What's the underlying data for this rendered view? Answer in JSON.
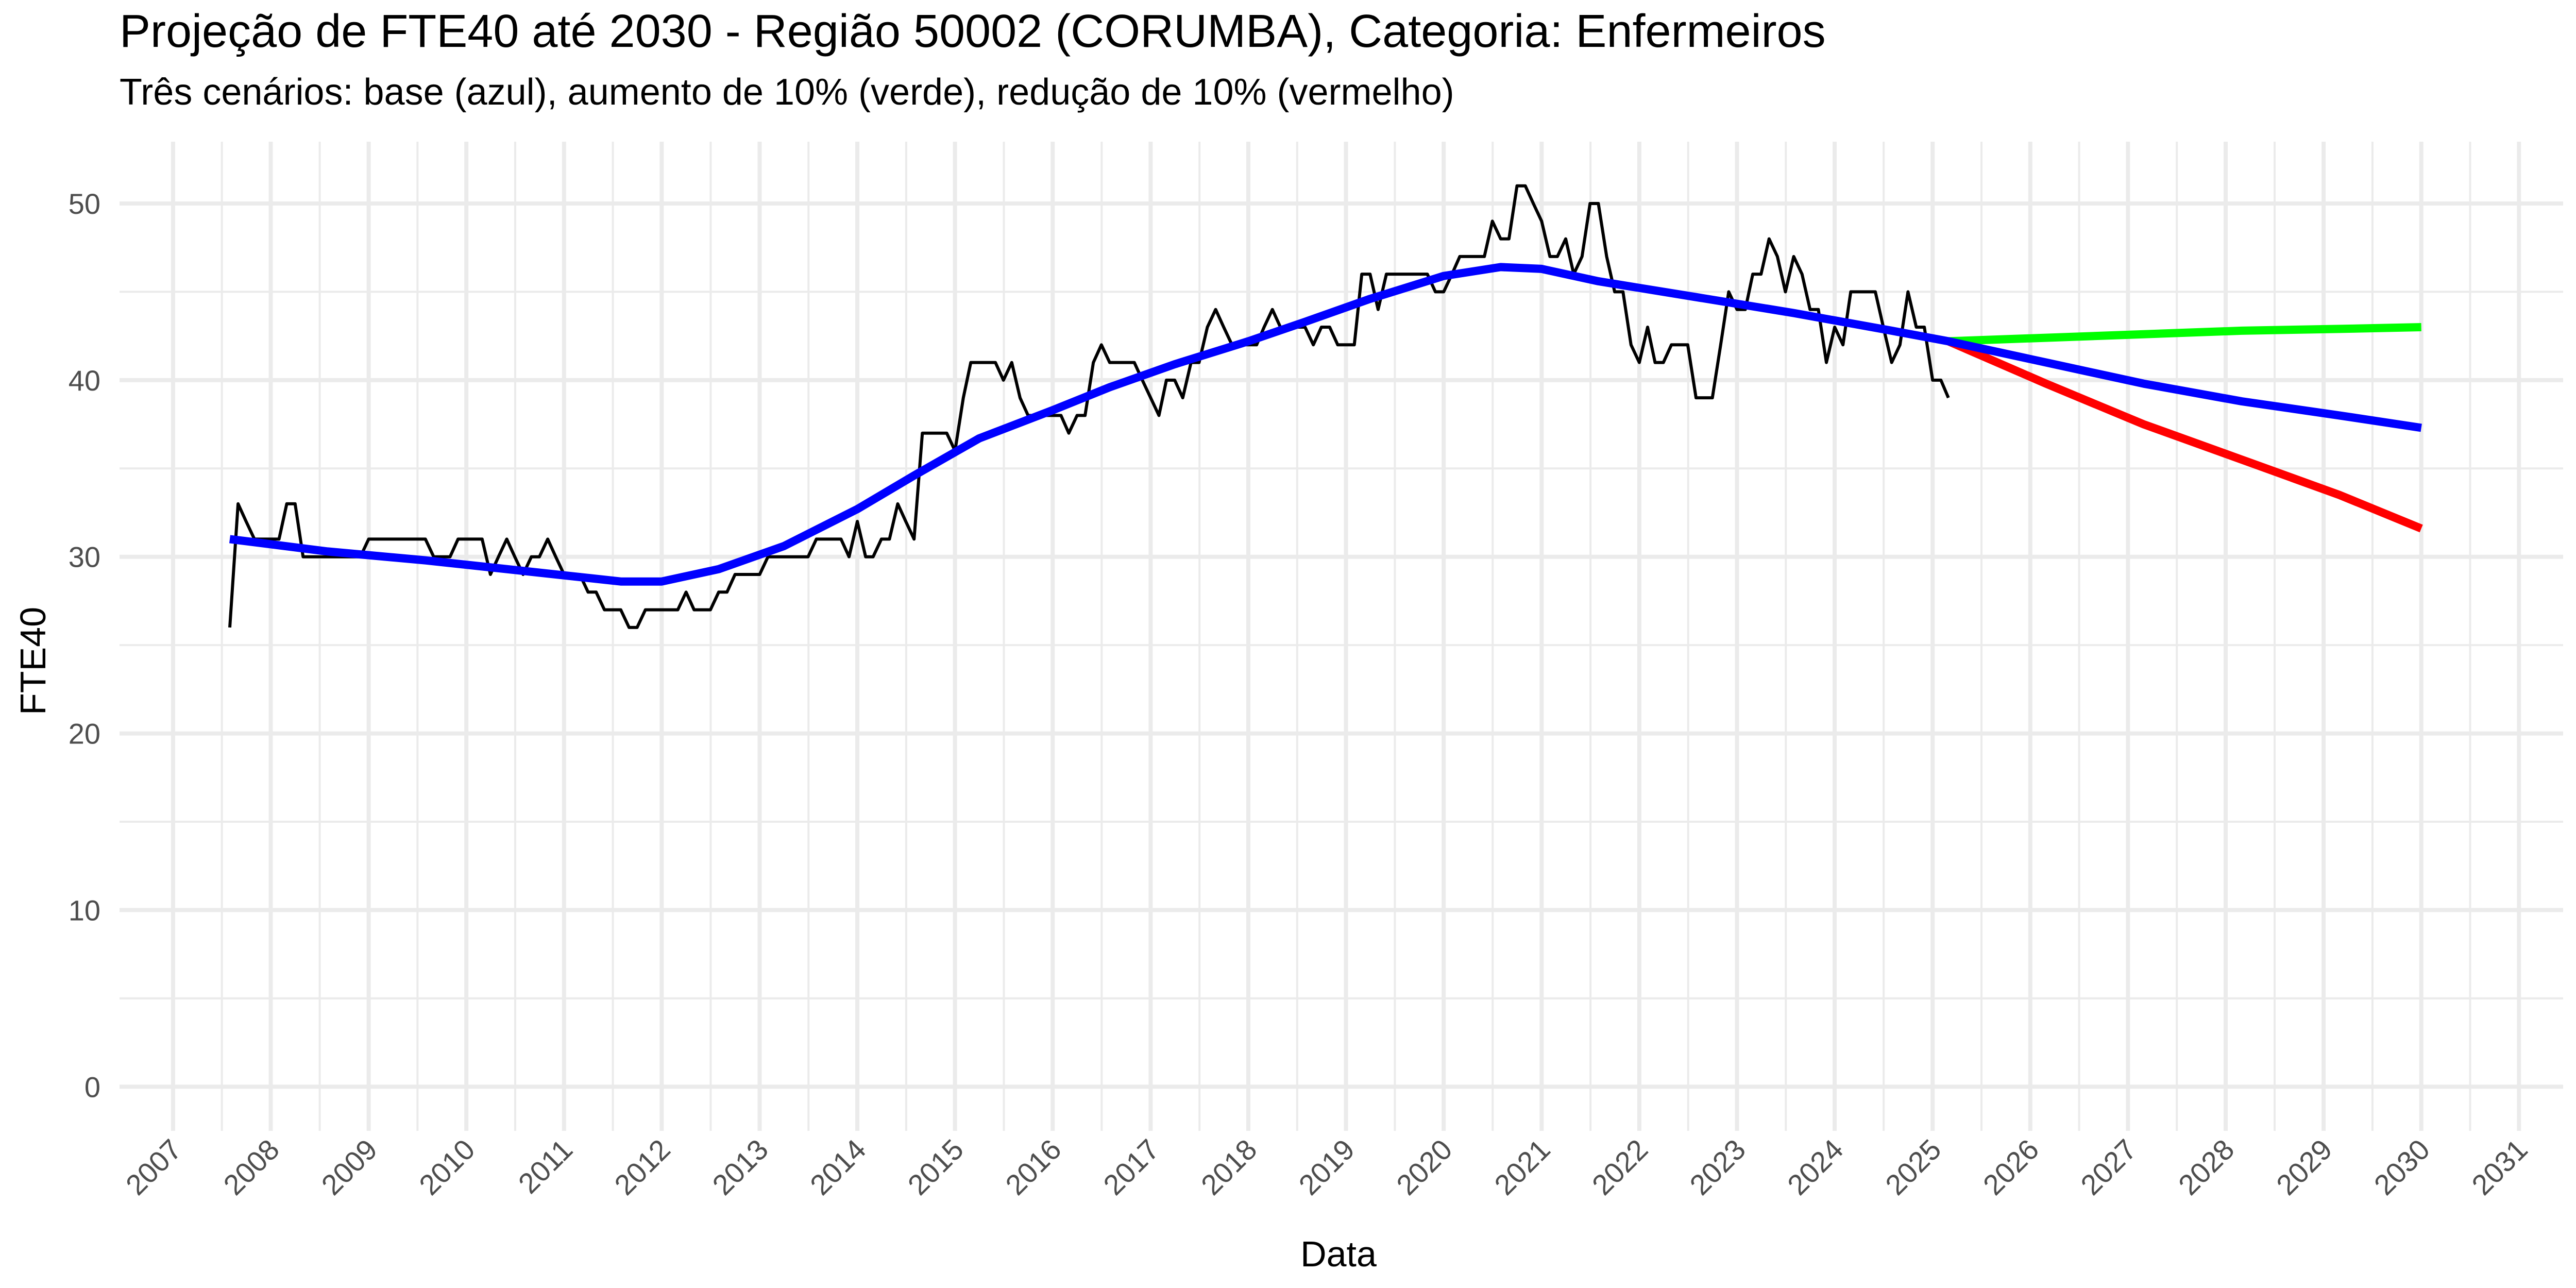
{
  "chart_data": {
    "type": "line",
    "title": "Projeção de FTE40 até 2030 - Região 50002 (CORUMBA), Categoria: Enfermeiros",
    "subtitle": "Três cenários: base (azul), aumento de 10% (verde), redução de 10% (vermelho)",
    "xlabel": "Data",
    "ylabel": "FTE40",
    "x_type": "date",
    "xlim": [
      "2006-06-15",
      "2031-06-15"
    ],
    "ylim": [
      -2.5,
      53.5
    ],
    "x_ticks": [
      "2007",
      "2008",
      "2009",
      "2010",
      "2011",
      "2012",
      "2013",
      "2014",
      "2015",
      "2016",
      "2017",
      "2018",
      "2019",
      "2020",
      "2021",
      "2022",
      "2023",
      "2024",
      "2025",
      "2026",
      "2027",
      "2028",
      "2029",
      "2030",
      "2031"
    ],
    "y_ticks": [
      0,
      10,
      20,
      30,
      40,
      50
    ],
    "grid": true,
    "legend": "none",
    "colors": {
      "observed": "#000000",
      "base": "#0000ff",
      "increase": "#00ff00",
      "decrease": "#ff0000",
      "grid": "#ebebeb"
    },
    "series": [
      {
        "key": "observed",
        "points": [
          [
            "2007-08",
            26
          ],
          [
            "2007-09",
            33
          ],
          [
            "2007-10",
            32
          ],
          [
            "2007-11",
            31
          ],
          [
            "2007-12",
            31
          ],
          [
            "2008-01",
            31
          ],
          [
            "2008-02",
            31
          ],
          [
            "2008-03",
            33
          ],
          [
            "2008-04",
            33
          ],
          [
            "2008-05",
            30
          ],
          [
            "2008-06",
            30
          ],
          [
            "2008-07",
            30
          ],
          [
            "2008-08",
            30
          ],
          [
            "2008-09",
            30
          ],
          [
            "2008-10",
            30
          ],
          [
            "2008-11",
            30
          ],
          [
            "2008-12",
            30
          ],
          [
            "2009-01",
            31
          ],
          [
            "2009-02",
            31
          ],
          [
            "2009-03",
            31
          ],
          [
            "2009-04",
            31
          ],
          [
            "2009-05",
            31
          ],
          [
            "2009-06",
            31
          ],
          [
            "2009-07",
            31
          ],
          [
            "2009-08",
            31
          ],
          [
            "2009-09",
            30
          ],
          [
            "2009-10",
            30
          ],
          [
            "2009-11",
            30
          ],
          [
            "2009-12",
            31
          ],
          [
            "2010-01",
            31
          ],
          [
            "2010-02",
            31
          ],
          [
            "2010-03",
            31
          ],
          [
            "2010-04",
            29
          ],
          [
            "2010-05",
            30
          ],
          [
            "2010-06",
            31
          ],
          [
            "2010-07",
            30
          ],
          [
            "2010-08",
            29
          ],
          [
            "2010-09",
            30
          ],
          [
            "2010-10",
            30
          ],
          [
            "2010-11",
            31
          ],
          [
            "2010-12",
            30
          ],
          [
            "2011-01",
            29
          ],
          [
            "2011-02",
            29
          ],
          [
            "2011-03",
            29
          ],
          [
            "2011-04",
            28
          ],
          [
            "2011-05",
            28
          ],
          [
            "2011-06",
            27
          ],
          [
            "2011-07",
            27
          ],
          [
            "2011-08",
            27
          ],
          [
            "2011-09",
            26
          ],
          [
            "2011-10",
            26
          ],
          [
            "2011-11",
            27
          ],
          [
            "2011-12",
            27
          ],
          [
            "2012-01",
            27
          ],
          [
            "2012-02",
            27
          ],
          [
            "2012-03",
            27
          ],
          [
            "2012-04",
            28
          ],
          [
            "2012-05",
            27
          ],
          [
            "2012-06",
            27
          ],
          [
            "2012-07",
            27
          ],
          [
            "2012-08",
            28
          ],
          [
            "2012-09",
            28
          ],
          [
            "2012-10",
            29
          ],
          [
            "2012-11",
            29
          ],
          [
            "2012-12",
            29
          ],
          [
            "2013-01",
            29
          ],
          [
            "2013-02",
            30
          ],
          [
            "2013-03",
            30
          ],
          [
            "2013-04",
            30
          ],
          [
            "2013-05",
            30
          ],
          [
            "2013-06",
            30
          ],
          [
            "2013-07",
            30
          ],
          [
            "2013-08",
            31
          ],
          [
            "2013-09",
            31
          ],
          [
            "2013-10",
            31
          ],
          [
            "2013-11",
            31
          ],
          [
            "2013-12",
            30
          ],
          [
            "2014-01",
            32
          ],
          [
            "2014-02",
            30
          ],
          [
            "2014-03",
            30
          ],
          [
            "2014-04",
            31
          ],
          [
            "2014-05",
            31
          ],
          [
            "2014-06",
            33
          ],
          [
            "2014-07",
            32
          ],
          [
            "2014-08",
            31
          ],
          [
            "2014-09",
            37
          ],
          [
            "2014-10",
            37
          ],
          [
            "2014-11",
            37
          ],
          [
            "2014-12",
            37
          ],
          [
            "2015-01",
            36
          ],
          [
            "2015-02",
            39
          ],
          [
            "2015-03",
            41
          ],
          [
            "2015-04",
            41
          ],
          [
            "2015-05",
            41
          ],
          [
            "2015-06",
            41
          ],
          [
            "2015-07",
            40
          ],
          [
            "2015-08",
            41
          ],
          [
            "2015-09",
            39
          ],
          [
            "2015-10",
            38
          ],
          [
            "2015-11",
            38
          ],
          [
            "2015-12",
            38
          ],
          [
            "2016-01",
            38
          ],
          [
            "2016-02",
            38
          ],
          [
            "2016-03",
            37
          ],
          [
            "2016-04",
            38
          ],
          [
            "2016-05",
            38
          ],
          [
            "2016-06",
            41
          ],
          [
            "2016-07",
            42
          ],
          [
            "2016-08",
            41
          ],
          [
            "2016-09",
            41
          ],
          [
            "2016-10",
            41
          ],
          [
            "2016-11",
            41
          ],
          [
            "2016-12",
            40
          ],
          [
            "2017-01",
            39
          ],
          [
            "2017-02",
            38
          ],
          [
            "2017-03",
            40
          ],
          [
            "2017-04",
            40
          ],
          [
            "2017-05",
            39
          ],
          [
            "2017-06",
            41
          ],
          [
            "2017-07",
            41
          ],
          [
            "2017-08",
            43
          ],
          [
            "2017-09",
            44
          ],
          [
            "2017-10",
            43
          ],
          [
            "2017-11",
            42
          ],
          [
            "2017-12",
            42
          ],
          [
            "2018-01",
            42
          ],
          [
            "2018-02",
            42
          ],
          [
            "2018-03",
            43
          ],
          [
            "2018-04",
            44
          ],
          [
            "2018-05",
            43
          ],
          [
            "2018-06",
            43
          ],
          [
            "2018-07",
            43
          ],
          [
            "2018-08",
            43
          ],
          [
            "2018-09",
            42
          ],
          [
            "2018-10",
            43
          ],
          [
            "2018-11",
            43
          ],
          [
            "2018-12",
            42
          ],
          [
            "2019-01",
            42
          ],
          [
            "2019-02",
            42
          ],
          [
            "2019-03",
            46
          ],
          [
            "2019-04",
            46
          ],
          [
            "2019-05",
            44
          ],
          [
            "2019-06",
            46
          ],
          [
            "2019-07",
            46
          ],
          [
            "2019-08",
            46
          ],
          [
            "2019-09",
            46
          ],
          [
            "2019-10",
            46
          ],
          [
            "2019-11",
            46
          ],
          [
            "2019-12",
            45
          ],
          [
            "2020-01",
            45
          ],
          [
            "2020-02",
            46
          ],
          [
            "2020-03",
            47
          ],
          [
            "2020-04",
            47
          ],
          [
            "2020-05",
            47
          ],
          [
            "2020-06",
            47
          ],
          [
            "2020-07",
            49
          ],
          [
            "2020-08",
            48
          ],
          [
            "2020-09",
            48
          ],
          [
            "2020-10",
            51
          ],
          [
            "2020-11",
            51
          ],
          [
            "2020-12",
            50
          ],
          [
            "2021-01",
            49
          ],
          [
            "2021-02",
            47
          ],
          [
            "2021-03",
            47
          ],
          [
            "2021-04",
            48
          ],
          [
            "2021-05",
            46
          ],
          [
            "2021-06",
            47
          ],
          [
            "2021-07",
            50
          ],
          [
            "2021-08",
            50
          ],
          [
            "2021-09",
            47
          ],
          [
            "2021-10",
            45
          ],
          [
            "2021-11",
            45
          ],
          [
            "2021-12",
            42
          ],
          [
            "2022-01",
            41
          ],
          [
            "2022-02",
            43
          ],
          [
            "2022-03",
            41
          ],
          [
            "2022-04",
            41
          ],
          [
            "2022-05",
            42
          ],
          [
            "2022-06",
            42
          ],
          [
            "2022-07",
            42
          ],
          [
            "2022-08",
            39
          ],
          [
            "2022-09",
            39
          ],
          [
            "2022-10",
            39
          ],
          [
            "2022-11",
            42
          ],
          [
            "2022-12",
            45
          ],
          [
            "2023-01",
            44
          ],
          [
            "2023-02",
            44
          ],
          [
            "2023-03",
            46
          ],
          [
            "2023-04",
            46
          ],
          [
            "2023-05",
            48
          ],
          [
            "2023-06",
            47
          ],
          [
            "2023-07",
            45
          ],
          [
            "2023-08",
            47
          ],
          [
            "2023-09",
            46
          ],
          [
            "2023-10",
            44
          ],
          [
            "2023-11",
            44
          ],
          [
            "2023-12",
            41
          ],
          [
            "2024-01",
            43
          ],
          [
            "2024-02",
            42
          ],
          [
            "2024-03",
            45
          ],
          [
            "2024-04",
            45
          ],
          [
            "2024-05",
            45
          ],
          [
            "2024-06",
            45
          ],
          [
            "2024-07",
            43
          ],
          [
            "2024-08",
            41
          ],
          [
            "2024-09",
            42
          ],
          [
            "2024-10",
            45
          ],
          [
            "2024-11",
            43
          ],
          [
            "2024-12",
            43
          ],
          [
            "2025-01",
            40
          ],
          [
            "2025-02",
            40
          ],
          [
            "2025-03",
            39
          ]
        ]
      },
      {
        "key": "base",
        "points": [
          [
            "2007-08",
            31
          ],
          [
            "2008-08",
            30.3
          ],
          [
            "2009-08",
            29.8
          ],
          [
            "2010-08",
            29.2
          ],
          [
            "2011-08",
            28.6
          ],
          [
            "2012-01",
            28.6
          ],
          [
            "2012-08",
            29.3
          ],
          [
            "2013-04",
            30.6
          ],
          [
            "2014-01",
            32.7
          ],
          [
            "2014-08",
            34.6
          ],
          [
            "2015-04",
            36.7
          ],
          [
            "2016-01",
            38.3
          ],
          [
            "2016-08",
            39.6
          ],
          [
            "2017-04",
            40.9
          ],
          [
            "2018-01",
            42.2
          ],
          [
            "2018-08",
            43.3
          ],
          [
            "2019-04",
            44.6
          ],
          [
            "2020-01",
            45.9
          ],
          [
            "2020-08",
            46.4
          ],
          [
            "2021-01",
            46.3
          ],
          [
            "2021-08",
            45.6
          ],
          [
            "2022-08",
            44.7
          ],
          [
            "2023-08",
            43.8
          ],
          [
            "2024-08",
            42.8
          ],
          [
            "2025-03",
            42.2
          ],
          [
            "2026-03",
            41.0
          ],
          [
            "2027-03",
            39.8
          ],
          [
            "2028-03",
            38.8
          ],
          [
            "2029-03",
            38.0
          ],
          [
            "2030-01",
            37.3
          ]
        ]
      },
      {
        "key": "increase",
        "points": [
          [
            "2025-03",
            42.2
          ],
          [
            "2026-03",
            42.4
          ],
          [
            "2027-03",
            42.6
          ],
          [
            "2028-03",
            42.8
          ],
          [
            "2029-03",
            42.9
          ],
          [
            "2030-01",
            43.0
          ]
        ]
      },
      {
        "key": "decrease",
        "points": [
          [
            "2025-03",
            42.2
          ],
          [
            "2026-03",
            39.8
          ],
          [
            "2027-03",
            37.5
          ],
          [
            "2028-03",
            35.5
          ],
          [
            "2029-03",
            33.5
          ],
          [
            "2030-01",
            31.6
          ]
        ]
      }
    ]
  }
}
